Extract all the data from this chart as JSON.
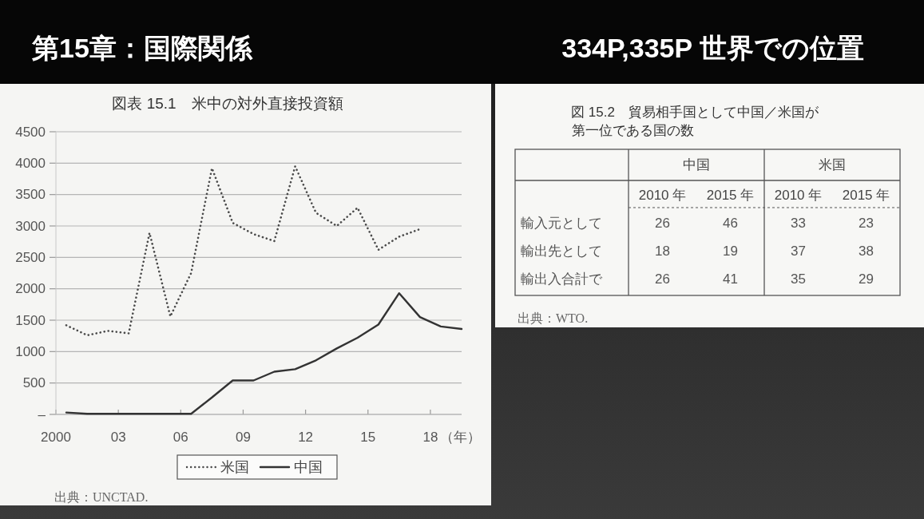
{
  "chart_data": [
    {
      "type": "other",
      "title": "第15章：国際関係",
      "subtitle": "334P,335P 世界での位置"
    },
    {
      "type": "line",
      "title": "図表 15.1　米中の対外直接投資額",
      "x": [
        2000.5,
        2001.5,
        2002.5,
        2003.5,
        2004.5,
        2005.5,
        2006.5,
        2007.5,
        2008.5,
        2009.5,
        2010.5,
        2011.5,
        2012.5,
        2013.5,
        2014.5,
        2015.5,
        2016.5,
        2017.5,
        2018.5,
        2019.5
      ],
      "xlim": [
        2000,
        2019.5
      ],
      "xticks": [
        {
          "value": 2000,
          "label": "2000"
        },
        {
          "value": 2003,
          "label": "03"
        },
        {
          "value": 2006,
          "label": "06"
        },
        {
          "value": 2009,
          "label": "09"
        },
        {
          "value": 2012,
          "label": "12"
        },
        {
          "value": 2015,
          "label": "15"
        },
        {
          "value": 2018,
          "label": "18"
        }
      ],
      "xlabel": "（年）",
      "ylim": [
        0,
        4500
      ],
      "yticks": [
        {
          "value": 0,
          "label": "–"
        },
        500,
        1000,
        1500,
        2000,
        2500,
        3000,
        3500,
        4000,
        4500
      ],
      "grid": "y",
      "legend": "bottom",
      "marker": "none",
      "series": [
        {
          "name": "米国",
          "color": "#4a4a4a",
          "line_style": "dotted",
          "values": [
            1420,
            1260,
            1330,
            1290,
            2890,
            1560,
            2250,
            3920,
            3050,
            2870,
            2760,
            3950,
            3210,
            3000,
            3290,
            2620,
            2830,
            2950,
            null,
            null
          ]
        },
        {
          "name": "中国",
          "color": "#333333",
          "line_style": "solid",
          "values": [
            30,
            10,
            10,
            10,
            10,
            10,
            10,
            270,
            540,
            540,
            680,
            720,
            860,
            1050,
            1220,
            1430,
            1930,
            1550,
            1400,
            1360
          ]
        }
      ],
      "annotations": [
        "出典：UNCTAD."
      ]
    },
    {
      "type": "heatmap",
      "title": "図 15.2　貿易相手国として中国／米国が",
      "subtitle": "第一位である国の数",
      "categories": [
        "2010 年",
        "2015 年",
        "2010 年",
        "2015 年"
      ],
      "y_categories": [
        "輸入元として",
        "輸出先として",
        "輸出入合計で"
      ],
      "cells": [
        [
          26,
          46,
          33,
          23
        ],
        [
          18,
          19,
          37,
          38
        ],
        [
          26,
          41,
          35,
          29
        ]
      ],
      "data_labels": true,
      "annotations": [
        "中国",
        "米国",
        "出典：WTO."
      ]
    }
  ]
}
